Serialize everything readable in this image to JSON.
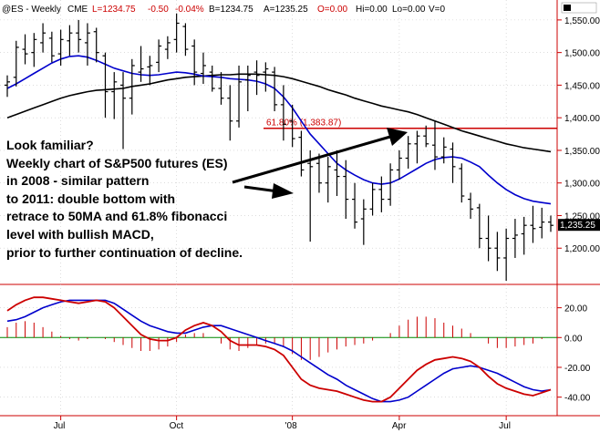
{
  "header": {
    "symbol": "@ES - Weekly",
    "exchange": "CME",
    "last": "L=1234.75",
    "change": "-0.50",
    "pct": "-0.04%",
    "bid": "B=1234.75",
    "ask": "A=1235.25",
    "open": "O=0.00",
    "hi": "Hi=0.00",
    "lo": "Lo=0.00",
    "vol": "V=0"
  },
  "colors": {
    "price_bar": "#000000",
    "ma_fast": "#0000cc",
    "ma_slow": "#000000",
    "fib_line": "#cc0000",
    "macd_line": "#cc0000",
    "signal_line": "#0000cc",
    "hist_pos": "#cc0000",
    "hist_neg": "#cc0000",
    "zero_line": "#008800",
    "axis": "#cc0000",
    "last_badge_bg": "#000000",
    "last_badge_fg": "#ffffff"
  },
  "fib": {
    "label": "61.80% (1,383.87)",
    "level": 1383.87
  },
  "last_price_badge": "1,235.25",
  "annotation": {
    "lines": [
      "Look familiar?",
      "Weekly chart of S&P500 futures (ES)",
      "in 2008 - similar pattern",
      "to 2011: double bottom with",
      "retrace to 50MA and 61.8% fibonacci",
      "level with bullish MACD,",
      "prior to further continuation of decline."
    ]
  },
  "chart_data": [
    {
      "type": "ohlc",
      "title": "@ES - Weekly",
      "x_tick_labels": [
        "Jul",
        "Oct",
        "'08",
        "Apr",
        "Jul"
      ],
      "x_tick_index": [
        6,
        19,
        32,
        44,
        56
      ],
      "y_tick_labels": [
        "1,200.00",
        "1,250.00",
        "1,300.00",
        "1,350.00",
        "1,400.00",
        "1,450.00",
        "1,500.00",
        "1,550.00"
      ],
      "ylim": [
        1150,
        1575
      ],
      "bars": [
        {
          "o": 1450,
          "h": 1465,
          "l": 1432,
          "c": 1455
        },
        {
          "o": 1462,
          "h": 1518,
          "l": 1448,
          "c": 1508
        },
        {
          "o": 1505,
          "h": 1528,
          "l": 1482,
          "c": 1498
        },
        {
          "o": 1500,
          "h": 1530,
          "l": 1478,
          "c": 1520
        },
        {
          "o": 1515,
          "h": 1545,
          "l": 1500,
          "c": 1530
        },
        {
          "o": 1522,
          "h": 1532,
          "l": 1485,
          "c": 1495
        },
        {
          "o": 1498,
          "h": 1535,
          "l": 1480,
          "c": 1520
        },
        {
          "o": 1518,
          "h": 1542,
          "l": 1495,
          "c": 1530
        },
        {
          "o": 1530,
          "h": 1550,
          "l": 1500,
          "c": 1520
        },
        {
          "o": 1515,
          "h": 1545,
          "l": 1480,
          "c": 1530
        },
        {
          "o": 1532,
          "h": 1538,
          "l": 1485,
          "c": 1500
        },
        {
          "o": 1495,
          "h": 1500,
          "l": 1400,
          "c": 1440
        },
        {
          "o": 1440,
          "h": 1470,
          "l": 1398,
          "c": 1455
        },
        {
          "o": 1450,
          "h": 1470,
          "l": 1352,
          "c": 1430
        },
        {
          "o": 1430,
          "h": 1490,
          "l": 1405,
          "c": 1480
        },
        {
          "o": 1470,
          "h": 1510,
          "l": 1455,
          "c": 1475
        },
        {
          "o": 1478,
          "h": 1495,
          "l": 1450,
          "c": 1480
        },
        {
          "o": 1485,
          "h": 1520,
          "l": 1470,
          "c": 1510
        },
        {
          "o": 1505,
          "h": 1525,
          "l": 1490,
          "c": 1515
        },
        {
          "o": 1520,
          "h": 1560,
          "l": 1500,
          "c": 1545
        },
        {
          "o": 1540,
          "h": 1545,
          "l": 1495,
          "c": 1505
        },
        {
          "o": 1510,
          "h": 1520,
          "l": 1450,
          "c": 1470
        },
        {
          "o": 1468,
          "h": 1500,
          "l": 1452,
          "c": 1480
        },
        {
          "o": 1470,
          "h": 1480,
          "l": 1440,
          "c": 1445
        },
        {
          "o": 1445,
          "h": 1470,
          "l": 1420,
          "c": 1430
        },
        {
          "o": 1430,
          "h": 1450,
          "l": 1365,
          "c": 1395
        },
        {
          "o": 1395,
          "h": 1480,
          "l": 1385,
          "c": 1455
        },
        {
          "o": 1458,
          "h": 1480,
          "l": 1410,
          "c": 1465
        },
        {
          "o": 1470,
          "h": 1488,
          "l": 1435,
          "c": 1465
        },
        {
          "o": 1470,
          "h": 1485,
          "l": 1440,
          "c": 1475
        },
        {
          "o": 1470,
          "h": 1478,
          "l": 1410,
          "c": 1420
        },
        {
          "o": 1420,
          "h": 1450,
          "l": 1365,
          "c": 1390
        },
        {
          "o": 1395,
          "h": 1420,
          "l": 1355,
          "c": 1368
        },
        {
          "o": 1370,
          "h": 1380,
          "l": 1310,
          "c": 1320
        },
        {
          "o": 1330,
          "h": 1350,
          "l": 1210,
          "c": 1325
        },
        {
          "o": 1330,
          "h": 1345,
          "l": 1285,
          "c": 1300
        },
        {
          "o": 1300,
          "h": 1340,
          "l": 1270,
          "c": 1325
        },
        {
          "o": 1320,
          "h": 1350,
          "l": 1280,
          "c": 1310
        },
        {
          "o": 1310,
          "h": 1335,
          "l": 1245,
          "c": 1275
        },
        {
          "o": 1275,
          "h": 1300,
          "l": 1230,
          "c": 1240
        },
        {
          "o": 1245,
          "h": 1275,
          "l": 1205,
          "c": 1260
        },
        {
          "o": 1260,
          "h": 1300,
          "l": 1250,
          "c": 1290
        },
        {
          "o": 1290,
          "h": 1310,
          "l": 1255,
          "c": 1275
        },
        {
          "o": 1275,
          "h": 1330,
          "l": 1265,
          "c": 1320
        },
        {
          "o": 1320,
          "h": 1350,
          "l": 1305,
          "c": 1338
        },
        {
          "o": 1338,
          "h": 1372,
          "l": 1322,
          "c": 1360
        },
        {
          "o": 1360,
          "h": 1380,
          "l": 1330,
          "c": 1372
        },
        {
          "o": 1372,
          "h": 1388,
          "l": 1355,
          "c": 1360
        },
        {
          "o": 1358,
          "h": 1395,
          "l": 1320,
          "c": 1340
        },
        {
          "o": 1340,
          "h": 1370,
          "l": 1330,
          "c": 1355
        },
        {
          "o": 1352,
          "h": 1362,
          "l": 1300,
          "c": 1325
        },
        {
          "o": 1322,
          "h": 1330,
          "l": 1270,
          "c": 1280
        },
        {
          "o": 1275,
          "h": 1285,
          "l": 1245,
          "c": 1260
        },
        {
          "o": 1262,
          "h": 1268,
          "l": 1200,
          "c": 1215
        },
        {
          "o": 1215,
          "h": 1250,
          "l": 1180,
          "c": 1200
        },
        {
          "o": 1200,
          "h": 1225,
          "l": 1165,
          "c": 1185
        },
        {
          "o": 1185,
          "h": 1230,
          "l": 1150,
          "c": 1215
        },
        {
          "o": 1215,
          "h": 1245,
          "l": 1185,
          "c": 1220
        },
        {
          "o": 1222,
          "h": 1248,
          "l": 1190,
          "c": 1235
        },
        {
          "o": 1235,
          "h": 1265,
          "l": 1208,
          "c": 1230
        },
        {
          "o": 1232,
          "h": 1262,
          "l": 1215,
          "c": 1240
        },
        {
          "o": 1240,
          "h": 1250,
          "l": 1225,
          "c": 1235
        }
      ],
      "ma_fast": [
        1445,
        1452,
        1460,
        1468,
        1476,
        1484,
        1490,
        1494,
        1495,
        1493,
        1488,
        1482,
        1476,
        1472,
        1468,
        1466,
        1465,
        1466,
        1468,
        1470,
        1469,
        1467,
        1464,
        1463,
        1462,
        1460,
        1459,
        1458,
        1456,
        1452,
        1445,
        1432,
        1415,
        1395,
        1375,
        1360,
        1345,
        1330,
        1320,
        1312,
        1305,
        1300,
        1298,
        1300,
        1306,
        1314,
        1322,
        1330,
        1336,
        1339,
        1340,
        1338,
        1332,
        1325,
        1312,
        1300,
        1290,
        1282,
        1276,
        1272,
        1270,
        1268
      ],
      "ma_slow": [
        1400,
        1405,
        1410,
        1415,
        1420,
        1425,
        1430,
        1434,
        1437,
        1440,
        1442,
        1443,
        1444,
        1445,
        1448,
        1450,
        1452,
        1455,
        1458,
        1460,
        1462,
        1463,
        1464,
        1465,
        1466,
        1466,
        1467,
        1467,
        1467,
        1466,
        1465,
        1463,
        1460,
        1456,
        1452,
        1448,
        1443,
        1439,
        1435,
        1430,
        1426,
        1422,
        1418,
        1415,
        1412,
        1409,
        1405,
        1400,
        1395,
        1390,
        1385,
        1380,
        1376,
        1372,
        1368,
        1364,
        1360,
        1357,
        1354,
        1352,
        1350,
        1348
      ]
    },
    {
      "type": "macd",
      "y_tick_labels": [
        "20.00",
        "0.00",
        "-20.00",
        "-40.00"
      ],
      "ylim": [
        -50,
        32
      ],
      "macd": [
        18,
        22,
        25,
        27,
        27,
        26,
        25,
        24,
        23,
        24,
        25,
        24,
        20,
        14,
        8,
        2,
        -1,
        -2,
        -2,
        0,
        5,
        8,
        10,
        8,
        4,
        -2,
        -5,
        -5,
        -5,
        -6,
        -8,
        -12,
        -20,
        -28,
        -32,
        -34,
        -35,
        -36,
        -38,
        -40,
        -42,
        -43,
        -43,
        -40,
        -34,
        -28,
        -22,
        -18,
        -15,
        -14,
        -13,
        -14,
        -16,
        -20,
        -26,
        -31,
        -34,
        -36,
        -38,
        -39,
        -37,
        -35
      ],
      "signal": [
        11,
        12,
        14,
        17,
        20,
        22,
        24,
        25,
        25,
        25,
        25,
        25,
        23,
        19,
        15,
        11,
        8,
        6,
        4,
        3,
        3,
        5,
        7,
        8,
        8,
        6,
        4,
        2,
        0,
        -2,
        -4,
        -6,
        -9,
        -13,
        -17,
        -21,
        -25,
        -28,
        -32,
        -35,
        -38,
        -41,
        -43,
        -43,
        -42,
        -40,
        -36,
        -32,
        -28,
        -24,
        -21,
        -20,
        -19,
        -20,
        -22,
        -24,
        -27,
        -30,
        -33,
        -35,
        -36,
        -35
      ],
      "histogram": [
        7,
        10,
        11,
        10,
        7,
        4,
        1,
        -1,
        -2,
        -1,
        0,
        -1,
        -3,
        -5,
        -7,
        -9,
        -9,
        -8,
        -6,
        -3,
        2,
        3,
        3,
        0,
        -4,
        -8,
        -9,
        -7,
        -5,
        -4,
        -4,
        -6,
        -11,
        -15,
        -15,
        -13,
        -10,
        -8,
        -6,
        -5,
        -4,
        -2,
        0,
        3,
        8,
        12,
        14,
        14,
        13,
        10,
        8,
        6,
        3,
        0,
        -4,
        -7,
        -7,
        -6,
        -5,
        -4,
        -1,
        0
      ]
    }
  ]
}
